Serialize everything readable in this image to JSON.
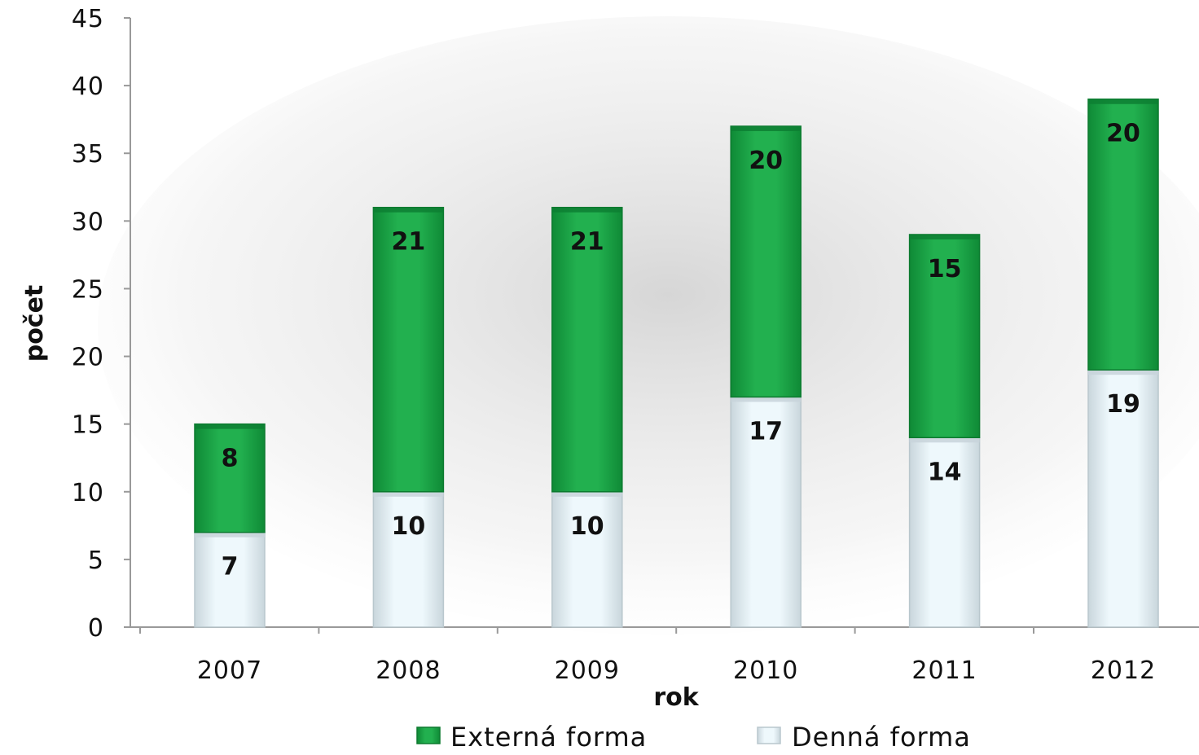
{
  "chart_data": {
    "type": "bar",
    "stacked": true,
    "categories": [
      "2007",
      "2008",
      "2009",
      "2010",
      "2011",
      "2012"
    ],
    "series": [
      {
        "name": "Denná forma",
        "values": [
          7,
          10,
          10,
          17,
          14,
          19
        ],
        "color": "#dff1f8"
      },
      {
        "name": "Externá forma",
        "values": [
          8,
          21,
          21,
          20,
          15,
          20
        ],
        "color": "#1faa4c"
      }
    ],
    "title": "",
    "xlabel": "rok",
    "ylabel": "počet",
    "ylim": [
      0,
      45
    ],
    "yticks": [
      "0",
      "5",
      "10",
      "15",
      "20",
      "25",
      "30",
      "35",
      "40",
      "45"
    ],
    "grid": false,
    "legend_position": "bottom",
    "legend_order": [
      "Externá forma",
      "Denná forma"
    ],
    "data_labels": true
  }
}
